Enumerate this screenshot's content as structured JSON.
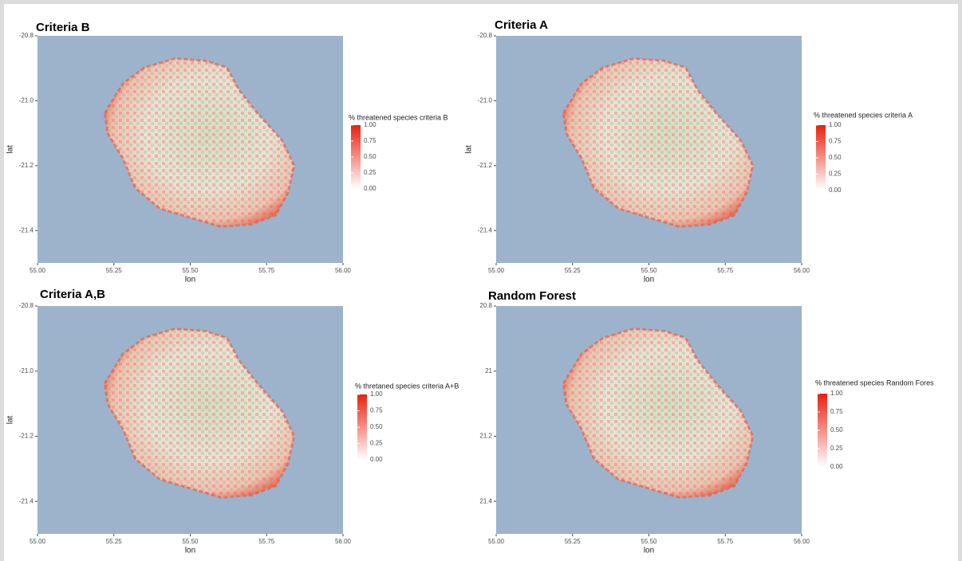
{
  "panels": [
    {
      "title": "Criteria B",
      "xlabel": "lon",
      "ylabel": "lat",
      "xlim": [
        55,
        56
      ],
      "ylim": [
        -21.5,
        -20.8
      ],
      "xticks": [
        {
          "value": 55,
          "label": "55.00"
        },
        {
          "value": 55.25,
          "label": "55.25"
        },
        {
          "value": 55.5,
          "label": "55.50"
        },
        {
          "value": 55.75,
          "label": "55.75"
        },
        {
          "value": 56,
          "label": "56.00"
        }
      ],
      "yticks": [
        {
          "value": -20.8,
          "label": "-20.8"
        },
        {
          "value": -21,
          "label": "-21.0"
        },
        {
          "value": -21.2,
          "label": "-21.2"
        },
        {
          "value": -21.4,
          "label": "-21.4"
        }
      ],
      "legend": {
        "title": "% threatened species criteria B",
        "limits": [
          0,
          1
        ],
        "colors": [
          "#ffffff",
          "#e8210f"
        ],
        "ticks": [
          {
            "value": 0,
            "label": "0.00"
          },
          {
            "value": 0.25,
            "label": "0.25"
          },
          {
            "value": 0.5,
            "label": "0.50"
          },
          {
            "value": 0.75,
            "label": "0.75"
          },
          {
            "value": 1,
            "label": "1.00"
          }
        ]
      }
    },
    {
      "title": "Criteria A",
      "xlabel": "lon",
      "ylabel": "lat",
      "xlim": [
        55,
        56
      ],
      "ylim": [
        -21.5,
        -20.8
      ],
      "xticks": [
        {
          "value": 55,
          "label": "55.00"
        },
        {
          "value": 55.25,
          "label": "55.25"
        },
        {
          "value": 55.5,
          "label": "55.50"
        },
        {
          "value": 55.75,
          "label": "55.75"
        },
        {
          "value": 56,
          "label": "56.00"
        }
      ],
      "yticks": [
        {
          "value": -20.8,
          "label": "-20.8"
        },
        {
          "value": -21,
          "label": "-21.0"
        },
        {
          "value": -21.2,
          "label": "-21.2"
        },
        {
          "value": -21.4,
          "label": "-21.4"
        }
      ],
      "legend": {
        "title": "% threatened species criteria A",
        "limits": [
          0,
          1
        ],
        "colors": [
          "#ffffff",
          "#e8210f"
        ],
        "ticks": [
          {
            "value": 0,
            "label": "0.00"
          },
          {
            "value": 0.25,
            "label": "0.25"
          },
          {
            "value": 0.5,
            "label": "0.50"
          },
          {
            "value": 0.75,
            "label": "0.75"
          },
          {
            "value": 1,
            "label": "1.00"
          }
        ]
      }
    },
    {
      "title": "Criteria A,B",
      "xlabel": "lon",
      "ylabel": "lat",
      "xlim": [
        55,
        56
      ],
      "ylim": [
        -21.5,
        -20.8
      ],
      "xticks": [
        {
          "value": 55,
          "label": "55.00"
        },
        {
          "value": 55.25,
          "label": "55.25"
        },
        {
          "value": 55.5,
          "label": "55.50"
        },
        {
          "value": 55.75,
          "label": "55.75"
        },
        {
          "value": 56,
          "label": "56.00"
        }
      ],
      "yticks": [
        {
          "value": -20.8,
          "label": "-20.8"
        },
        {
          "value": -21,
          "label": "-21.0"
        },
        {
          "value": -21.2,
          "label": "-21.2"
        },
        {
          "value": -21.4,
          "label": "-21.4"
        }
      ],
      "legend": {
        "title": "% thretaned species criteria A+B",
        "limits": [
          0,
          1
        ],
        "colors": [
          "#ffffff",
          "#e8210f"
        ],
        "ticks": [
          {
            "value": 0,
            "label": "0.00"
          },
          {
            "value": 0.25,
            "label": "0.25"
          },
          {
            "value": 0.5,
            "label": "0.50"
          },
          {
            "value": 0.75,
            "label": "0.75"
          },
          {
            "value": 1,
            "label": "1.00"
          }
        ]
      }
    },
    {
      "title": "Random Forest",
      "xlabel": "lon",
      "xlim": [
        55,
        56
      ],
      "ylim": [
        21.5,
        20.8
      ],
      "xticks": [
        {
          "value": 55,
          "label": "55.00"
        },
        {
          "value": 55.25,
          "label": "55.25"
        },
        {
          "value": 55.5,
          "label": "55.50"
        },
        {
          "value": 55.75,
          "label": "55.75"
        },
        {
          "value": 56,
          "label": "56.00"
        }
      ],
      "yticks": [
        20.8,
        21.0,
        21.2,
        21.4
      ],
      "legend": {
        "title": "% threatened species Random Fores",
        "limits": [
          0,
          1
        ],
        "colors": [
          "#ffffff",
          "#e8210f"
        ],
        "ticks": [
          {
            "value": 0,
            "label": "0.00"
          },
          {
            "value": 0.25,
            "label": "0.25"
          },
          {
            "value": 0.5,
            "label": "0.50"
          },
          {
            "value": 0.75,
            "label": "0.75"
          },
          {
            "value": 1,
            "label": "1.00"
          }
        ]
      }
    }
  ]
}
